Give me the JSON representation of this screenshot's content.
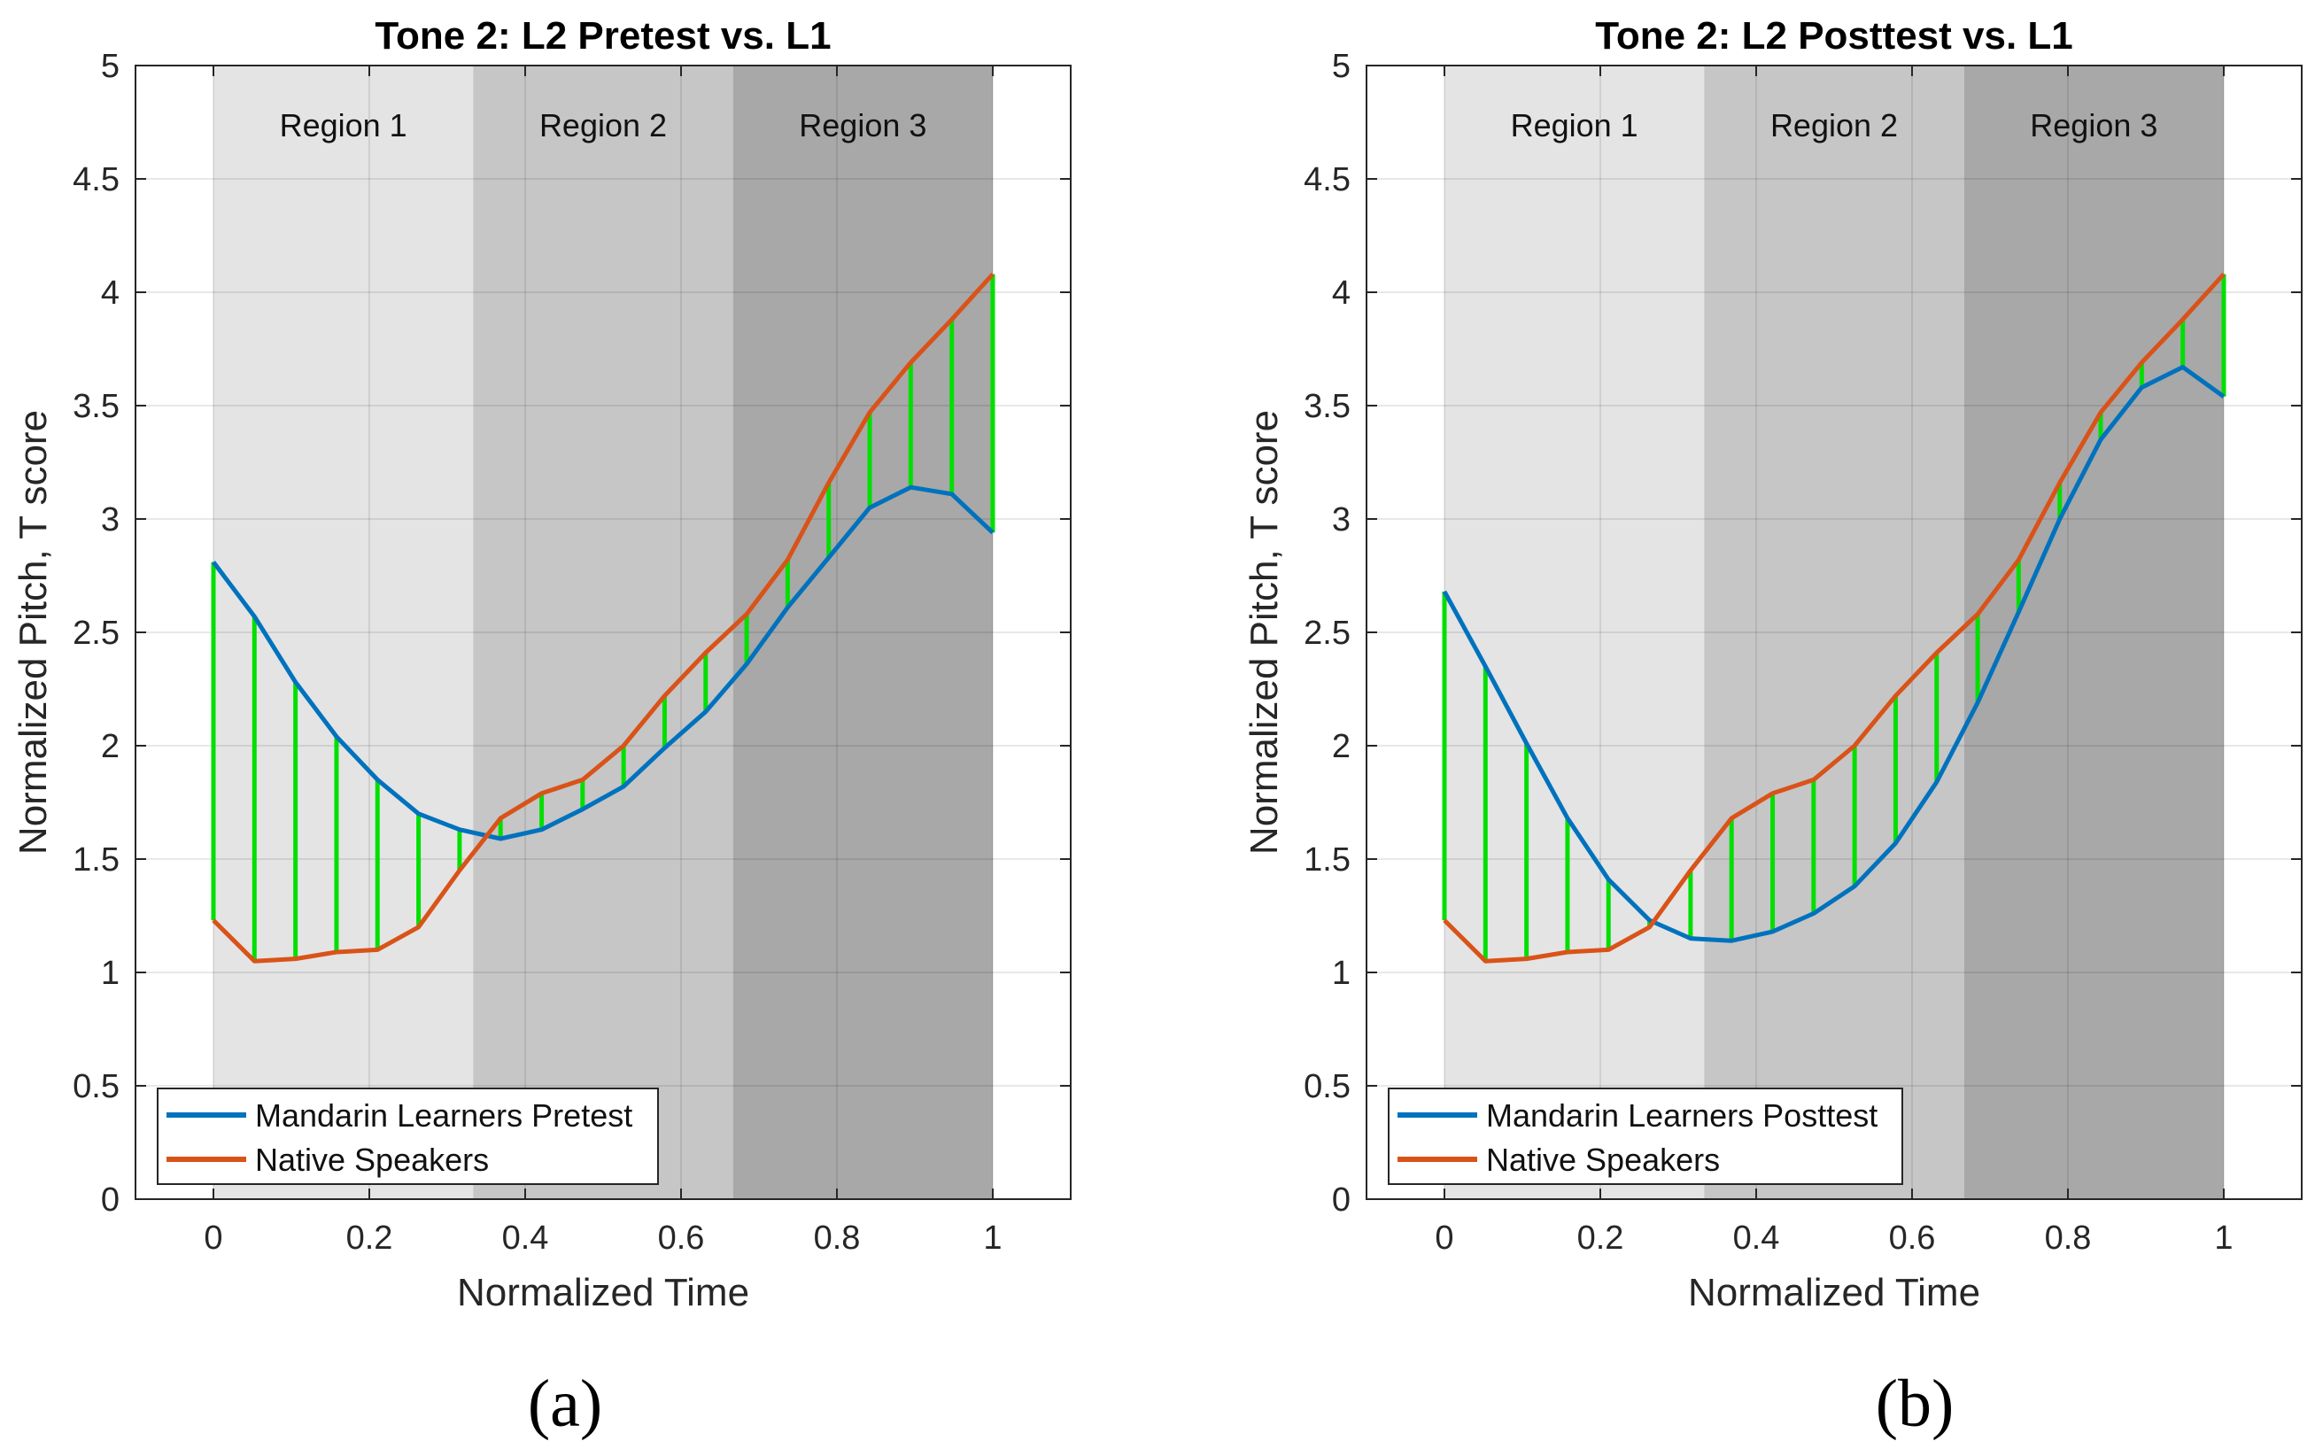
{
  "colors": {
    "learners": "#0072BD",
    "native": "#D95319",
    "diff": "#00E000",
    "region1": "#E4E4E4",
    "region2": "#C6C6C6",
    "region3": "#A8A8A8",
    "grid": "#DADADA"
  },
  "chart_data": [
    {
      "type": "line",
      "panel_label": "(a)",
      "title": "Tone 2: L2 Pretest vs. L1",
      "xlabel": "Normalized Time",
      "ylabel": "Normalized Pitch, T score",
      "xlim": [
        -0.1,
        1.1
      ],
      "ylim": [
        0,
        5
      ],
      "xticks": [
        "0",
        "0.2",
        "0.4",
        "0.6",
        "0.8",
        "1"
      ],
      "yticks": [
        "0",
        "0.5",
        "1",
        "1.5",
        "2",
        "2.5",
        "3",
        "3.5",
        "4",
        "4.5",
        "5"
      ],
      "grid": true,
      "regions": [
        {
          "label": "Region 1",
          "x0": 0,
          "x1": 0.3333
        },
        {
          "label": "Region 2",
          "x0": 0.3333,
          "x1": 0.6667
        },
        {
          "label": "Region 3",
          "x0": 0.6667,
          "x1": 1
        }
      ],
      "x": [
        0,
        0.0526,
        0.1053,
        0.1579,
        0.2105,
        0.2632,
        0.3158,
        0.3684,
        0.4211,
        0.4737,
        0.5263,
        0.5789,
        0.6316,
        0.6842,
        0.7368,
        0.7895,
        0.8421,
        0.8947,
        0.9474,
        1.0
      ],
      "series": [
        {
          "name": "Mandarin Learners Pretest",
          "values": [
            2.81,
            2.57,
            2.28,
            2.04,
            1.85,
            1.7,
            1.63,
            1.59,
            1.63,
            1.72,
            1.82,
            1.99,
            2.15,
            2.36,
            2.61,
            2.83,
            3.05,
            3.14,
            3.11,
            2.94
          ]
        },
        {
          "name": "Native Speakers",
          "values": [
            1.23,
            1.05,
            1.06,
            1.09,
            1.1,
            1.2,
            1.45,
            1.68,
            1.79,
            1.85,
            2.0,
            2.22,
            2.41,
            2.58,
            2.82,
            3.16,
            3.47,
            3.69,
            3.88,
            4.08
          ]
        }
      ],
      "legend_location": "bottom-left"
    },
    {
      "type": "line",
      "panel_label": "(b)",
      "title": "Tone 2: L2 Posttest vs. L1",
      "xlabel": "Normalized Time",
      "ylabel": "Normalized Pitch, T score",
      "xlim": [
        -0.1,
        1.1
      ],
      "ylim": [
        0,
        5
      ],
      "xticks": [
        "0",
        "0.2",
        "0.4",
        "0.6",
        "0.8",
        "1"
      ],
      "yticks": [
        "0",
        "0.5",
        "1",
        "1.5",
        "2",
        "2.5",
        "3",
        "3.5",
        "4",
        "4.5",
        "5"
      ],
      "grid": true,
      "regions": [
        {
          "label": "Region 1",
          "x0": 0,
          "x1": 0.3333
        },
        {
          "label": "Region 2",
          "x0": 0.3333,
          "x1": 0.6667
        },
        {
          "label": "Region 3",
          "x0": 0.6667,
          "x1": 1
        }
      ],
      "x": [
        0,
        0.0526,
        0.1053,
        0.1579,
        0.2105,
        0.2632,
        0.3158,
        0.3684,
        0.4211,
        0.4737,
        0.5263,
        0.5789,
        0.6316,
        0.6842,
        0.7368,
        0.7895,
        0.8421,
        0.8947,
        0.9474,
        1.0
      ],
      "series": [
        {
          "name": "Mandarin Learners Posttest",
          "values": [
            2.68,
            2.35,
            2.01,
            1.68,
            1.41,
            1.23,
            1.15,
            1.14,
            1.18,
            1.26,
            1.38,
            1.57,
            1.84,
            2.19,
            2.59,
            3.0,
            3.35,
            3.58,
            3.67,
            3.54
          ]
        },
        {
          "name": "Native Speakers",
          "values": [
            1.23,
            1.05,
            1.06,
            1.09,
            1.1,
            1.2,
            1.45,
            1.68,
            1.79,
            1.85,
            2.0,
            2.22,
            2.41,
            2.58,
            2.82,
            3.16,
            3.47,
            3.69,
            3.88,
            4.08
          ]
        }
      ],
      "legend_location": "bottom-left"
    }
  ]
}
